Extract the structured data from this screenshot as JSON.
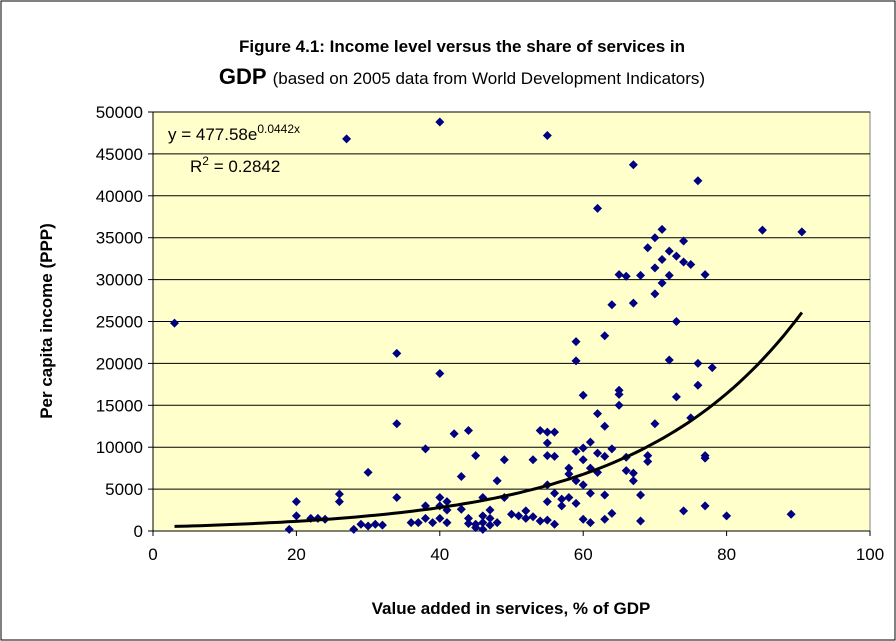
{
  "chart_data": {
    "type": "scatter",
    "title_lines": [
      "Figure 4.1: Income level versus the share of services in",
      "GDP"
    ],
    "subtitle": "(based on 2005 data from World Development Indicators)",
    "xlabel": "Value added in services, % of GDP",
    "ylabel": "Per capita income (PPP)",
    "xlim": [
      0,
      100
    ],
    "xticks": [
      0,
      20,
      40,
      60,
      80,
      100
    ],
    "ylim": [
      0,
      50000
    ],
    "yticks": [
      0,
      5000,
      10000,
      15000,
      20000,
      25000,
      30000,
      35000,
      40000,
      45000,
      50000
    ],
    "grid": true,
    "plot_background": "#ffffcc",
    "color": "#000080",
    "trendline": {
      "a": 477.58,
      "b": 0.0442,
      "xlim": [
        3,
        90.5
      ],
      "color": "#000000"
    },
    "annotations": [
      "y = 477.58e",
      "0.0442x",
      "R",
      "2",
      " = 0.2842"
    ],
    "x": [
      3,
      19,
      20,
      20,
      22,
      23,
      24,
      26,
      26,
      27,
      28,
      29,
      30,
      30,
      31,
      32,
      34,
      34,
      34,
      36,
      37,
      38,
      38,
      38,
      39,
      40,
      40,
      40,
      40,
      40,
      41,
      41,
      41,
      42,
      43,
      43,
      44,
      44,
      44,
      45,
      45,
      45,
      46,
      46,
      46,
      46,
      47,
      47,
      47,
      48,
      48,
      49,
      49,
      50,
      51,
      52,
      52,
      53,
      53,
      54,
      54,
      55,
      55,
      55,
      55,
      55,
      55,
      55,
      56,
      56,
      56,
      56,
      57,
      57,
      58,
      58,
      58,
      59,
      59,
      59,
      59,
      59,
      60,
      60,
      60,
      60,
      60,
      61,
      61,
      61,
      61,
      62,
      62,
      62,
      62,
      63,
      63,
      63,
      63,
      63,
      64,
      64,
      64,
      65,
      65,
      65,
      65,
      66,
      66,
      66,
      67,
      67,
      67,
      67,
      68,
      68,
      68,
      69,
      69,
      69,
      70,
      70,
      70,
      70,
      71,
      71,
      71,
      72,
      72,
      72,
      73,
      73,
      73,
      74,
      74,
      74,
      75,
      75,
      76,
      76,
      76,
      77,
      77,
      77,
      77,
      78,
      80,
      85,
      89,
      90.5
    ],
    "values": [
      24800,
      200,
      3500,
      1800,
      1500,
      1500,
      1400,
      4400,
      3500,
      46800,
      200,
      800,
      7000,
      600,
      800,
      700,
      21200,
      12800,
      4000,
      1000,
      1000,
      9800,
      3000,
      1500,
      1000,
      18800,
      48800,
      4000,
      3000,
      1500,
      3500,
      2500,
      1000,
      11600,
      6500,
      2600,
      12000,
      1500,
      900,
      800,
      400,
      9000,
      4000,
      1800,
      1000,
      200,
      2500,
      700,
      1500,
      6000,
      1000,
      8500,
      4000,
      2000,
      1800,
      1500,
      2400,
      1700,
      8500,
      12000,
      1200,
      47200,
      11800,
      10500,
      9000,
      5500,
      3500,
      1300,
      11800,
      8900,
      4500,
      800,
      3800,
      3000,
      7500,
      6800,
      4000,
      22600,
      20300,
      9500,
      6000,
      3300,
      16200,
      9900,
      8500,
      5500,
      1400,
      10600,
      7500,
      4500,
      1000,
      38500,
      14000,
      9300,
      7000,
      23300,
      12500,
      8900,
      4300,
      1400,
      27000,
      9800,
      2100,
      30600,
      16800,
      16300,
      15000,
      30400,
      8800,
      7200,
      43700,
      27200,
      6900,
      6000,
      30500,
      4300,
      1200,
      33800,
      9000,
      8300,
      31400,
      35000,
      12800,
      28300,
      32400,
      36000,
      29600,
      30500,
      33400,
      20400,
      32800,
      25000,
      16000,
      34600,
      32100,
      2400,
      31800,
      13500,
      17400,
      41800,
      20000,
      9000,
      8700,
      30600,
      3000,
      19500,
      1800,
      35900,
      2000,
      35700
    ]
  }
}
